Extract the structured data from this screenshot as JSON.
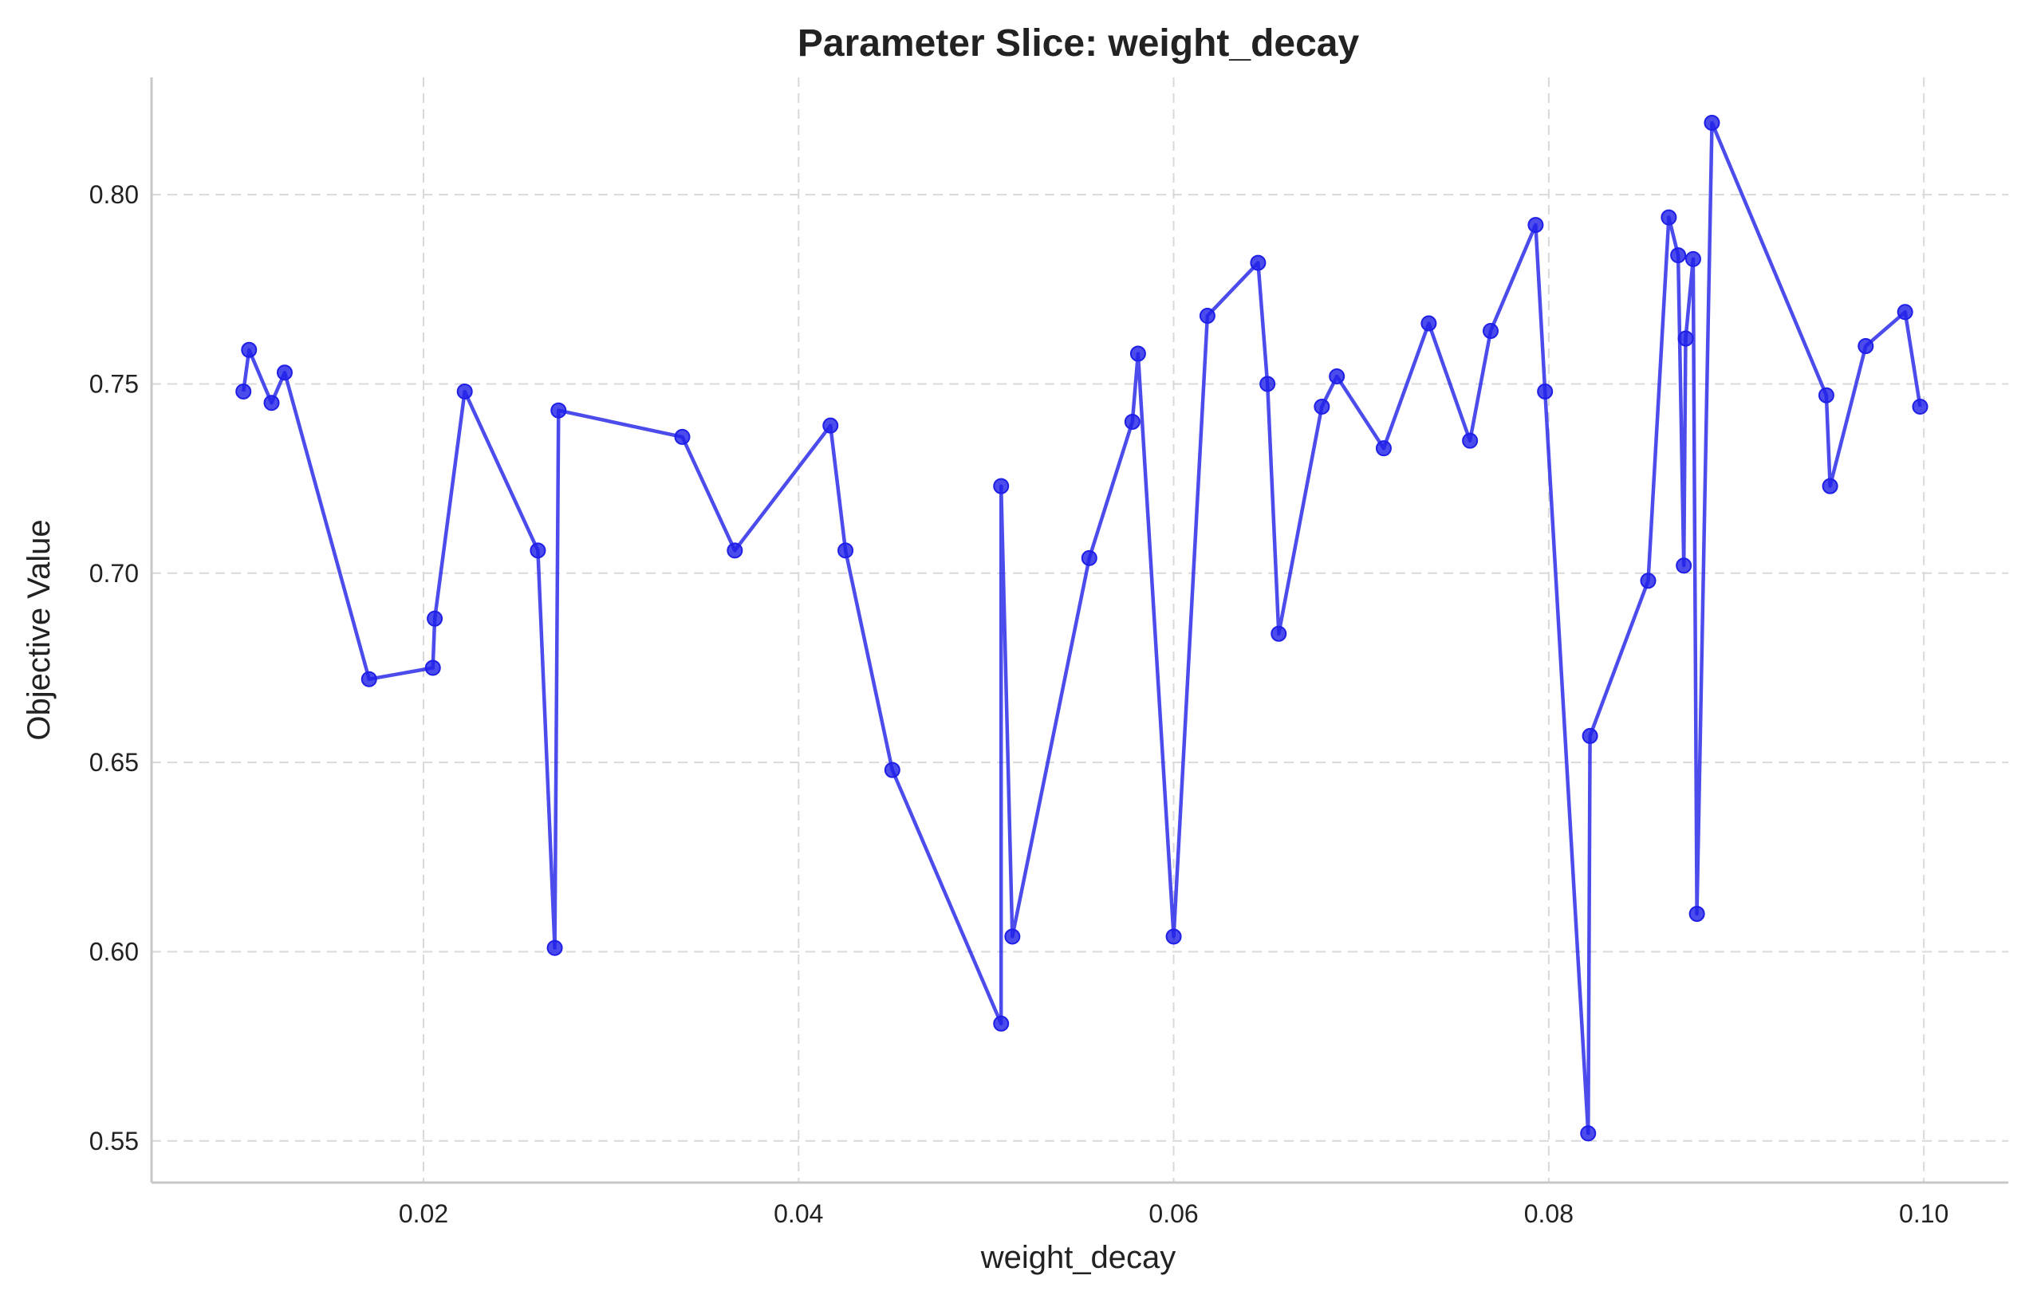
{
  "chart_data": {
    "type": "line",
    "title": "Parameter Slice: weight_decay",
    "xlabel": "weight_decay",
    "ylabel": "Objective Value",
    "xlim": [
      0.0055,
      0.1045
    ],
    "ylim": [
      0.539,
      0.831
    ],
    "xticks": [
      0.02,
      0.04,
      0.06,
      0.08,
      0.1
    ],
    "xtick_labels": [
      "0.02",
      "0.04",
      "0.06",
      "0.08",
      "0.10"
    ],
    "yticks": [
      0.55,
      0.6,
      0.65,
      0.7,
      0.75,
      0.8
    ],
    "ytick_labels": [
      "0.55",
      "0.60",
      "0.65",
      "0.70",
      "0.75",
      "0.80"
    ],
    "grid": true,
    "legend": "none",
    "series": [
      {
        "color": "#1f1fe8",
        "marker": "circle",
        "x": [
          0.0104,
          0.0107,
          0.0119,
          0.0126,
          0.0171,
          0.0205,
          0.0206,
          0.0222,
          0.0261,
          0.027,
          0.0272,
          0.0338,
          0.0366,
          0.0417,
          0.0425,
          0.045,
          0.0508,
          0.0508,
          0.0514,
          0.0555,
          0.0578,
          0.0581,
          0.06,
          0.0618,
          0.0645,
          0.065,
          0.0656,
          0.0679,
          0.0687,
          0.0712,
          0.0736,
          0.0758,
          0.0769,
          0.0793,
          0.0798,
          0.0821,
          0.0822,
          0.0853,
          0.0864,
          0.0869,
          0.0872,
          0.0873,
          0.0877,
          0.0879,
          0.0887,
          0.0948,
          0.095,
          0.0969,
          0.099,
          0.0998
        ],
        "y": [
          0.748,
          0.759,
          0.745,
          0.753,
          0.672,
          0.675,
          0.688,
          0.748,
          0.706,
          0.601,
          0.743,
          0.736,
          0.706,
          0.739,
          0.706,
          0.648,
          0.581,
          0.723,
          0.604,
          0.704,
          0.74,
          0.758,
          0.604,
          0.768,
          0.782,
          0.75,
          0.684,
          0.744,
          0.752,
          0.733,
          0.766,
          0.735,
          0.764,
          0.792,
          0.748,
          0.552,
          0.657,
          0.698,
          0.794,
          0.784,
          0.702,
          0.762,
          0.783,
          0.61,
          0.819,
          0.747,
          0.723,
          0.76,
          0.769,
          0.744
        ]
      }
    ]
  }
}
